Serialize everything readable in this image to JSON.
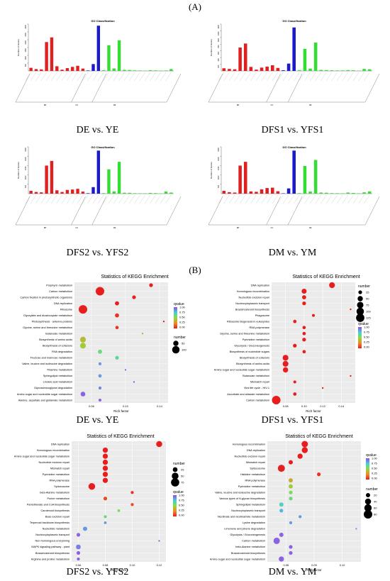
{
  "section_a_label": "(A)",
  "section_b_label": "(B)",
  "go_panels": [
    {
      "id": "go1",
      "title": "GO Classification",
      "caption": "DE vs. YE",
      "ylabel": "Number of Genes",
      "groups": [
        "BP",
        "CC",
        "MF"
      ],
      "yticks": [
        "500",
        "1000",
        "1500",
        "2000",
        "2500",
        "3000"
      ],
      "chart_data": {
        "type": "bar",
        "bp_values": [
          200,
          120,
          100,
          1850,
          2150,
          300,
          80,
          180,
          260,
          330,
          150
        ],
        "cc_values": [
          30,
          440,
          2900,
          45,
          1650,
          160,
          1960,
          70,
          60,
          35,
          30,
          25,
          50,
          35,
          25,
          30,
          120
        ],
        "ymax": 3000
      }
    },
    {
      "id": "go2",
      "title": "GO Classification",
      "caption": "DFS1 vs. YFS1",
      "ylabel": "Number of Genes",
      "groups": [
        "BP",
        "CC",
        "MF"
      ],
      "yticks": [
        "200",
        "400",
        "600",
        "800",
        "1000",
        "1200",
        "1400"
      ],
      "chart_data": {
        "type": "bar",
        "bp_values": [
          80,
          60,
          50,
          700,
          820,
          120,
          40,
          100,
          130,
          170,
          90
        ],
        "cc_values": [
          20,
          220,
          1300,
          25,
          660,
          70,
          850,
          30,
          25,
          20,
          15,
          15,
          25,
          20,
          10,
          60,
          50
        ],
        "ymax": 1400
      }
    },
    {
      "id": "go3",
      "title": "GO Classification",
      "caption": "DFS2 vs. YFS2",
      "ylabel": "Number of Genes",
      "groups": [
        "BP",
        "CC",
        "MF"
      ],
      "yticks": [
        "500",
        "1000",
        "1500",
        "2000",
        "2500"
      ],
      "chart_data": {
        "type": "bar",
        "bp_values": [
          150,
          90,
          70,
          1500,
          1750,
          180,
          90,
          200,
          220,
          260,
          110
        ],
        "cc_values": [
          25,
          350,
          2300,
          30,
          1300,
          120,
          1700,
          50,
          45,
          25,
          20,
          20,
          40,
          30,
          15,
          110,
          60
        ],
        "ymax": 2500
      }
    },
    {
      "id": "go4",
      "title": "GO Classification",
      "caption": "DM vs. YM",
      "ylabel": "Number of Genes",
      "groups": [
        "BP",
        "CC",
        "MF"
      ],
      "yticks": [
        "500",
        "1000",
        "1500",
        "2000",
        "2500"
      ],
      "chart_data": {
        "type": "bar",
        "bp_values": [
          150,
          80,
          60,
          1500,
          1700,
          120,
          100,
          230,
          300,
          320,
          130
        ],
        "cc_values": [
          20,
          280,
          2300,
          30,
          1480,
          110,
          1800,
          60,
          50,
          30,
          25,
          20,
          60,
          40,
          20,
          70,
          120
        ],
        "ymax": 2500
      }
    }
  ],
  "kegg_panels": [
    {
      "id": "k1",
      "title": "Statistics of KEGG Enrichment",
      "caption": "DE vs. YE",
      "xlabel": "Rich factor",
      "xticks": [
        0.06,
        0.1,
        0.14
      ],
      "xlim": [
        0.04,
        0.15
      ],
      "legend": {
        "q_title": "qvalue",
        "q_ticks": [
          "1.00",
          "0.75",
          "0.50",
          "0.25",
          "0.00"
        ],
        "n_title": "number",
        "n_ticks": [
          50,
          100
        ],
        "n_max": 130
      },
      "chart_data": {
        "type": "scatter",
        "terms": [
          "Porphyrin metabolism",
          "Carbon metabolism",
          "Carbon fixation in photosynthetic organisms",
          "DNA replication",
          "Ribosome",
          "Glyoxylate and dicarboxylate metabolism",
          "Photosynthesis - antenna proteins",
          "Glycine, serine and threonine metabolism",
          "Butanoate metabolism",
          "Biosynthesis of amino acids",
          "Biosynthesis of cofactors",
          "RNA degradation",
          "Fructose and mannose metabolism",
          "Valine, leucine and isoleucine degradation",
          "Thiamine metabolism",
          "Sphingolipid metabolism",
          "Linoleic acid metabolism",
          "Glycosaminoglycan degradation",
          "Amino sugar and nucleotide sugar metabolism",
          "Alanine, aspartate and glutamate metabolism"
        ],
        "rich": [
          0.13,
          0.07,
          0.11,
          0.09,
          0.05,
          0.09,
          0.145,
          0.09,
          0.12,
          0.05,
          0.05,
          0.07,
          0.09,
          0.07,
          0.1,
          0.07,
          0.11,
          0.07,
          0.05,
          0.07
        ],
        "number": [
          25,
          130,
          25,
          30,
          130,
          30,
          5,
          20,
          5,
          60,
          60,
          30,
          25,
          15,
          5,
          20,
          5,
          15,
          40,
          15
        ],
        "qvalue": [
          0.0,
          0.0,
          0.0,
          0.0,
          0.0,
          0.05,
          0.0,
          0.05,
          0.35,
          0.4,
          0.45,
          0.6,
          0.65,
          0.85,
          0.95,
          0.85,
          0.95,
          0.9,
          0.95,
          0.95
        ]
      }
    },
    {
      "id": "k2",
      "title": "Statistics of KEGG Enrichment",
      "caption": "DFS1 vs. YFS1",
      "xlabel": "Rich factor",
      "xticks": [
        0.08,
        0.1,
        0.12,
        0.14
      ],
      "xlim": [
        0.065,
        0.155
      ],
      "legend": {
        "q_title": "qvalue",
        "q_ticks": [
          "1.00",
          "0.75",
          "0.50",
          "0.25",
          "0.00"
        ],
        "n_title": "number",
        "n_ticks": [
          25,
          50,
          75,
          100,
          125
        ],
        "n_max": 130
      },
      "chart_data": {
        "type": "scatter",
        "terms": [
          "DNA replication",
          "Homologous recombination",
          "Nucleotide excision repair",
          "Nucleocytoplasmic transport",
          "Brassinosteroid biosynthesis",
          "Phagosome",
          "Ribosome biogenesis in eukaryotes",
          "RNA polymerase",
          "Glycine, serine and threonine metabolism",
          "Pyrimidine metabolism",
          "Glycolysis / Gluconeogenesis",
          "Biosynthesis of nucleotide sugars",
          "Biosynthesis of cofactors",
          "Biosynthesis of amino acids",
          "Amino sugar and nucleotide sugar metabolism",
          "Butanoate metabolism",
          "Mismatch repair",
          "Viral life cycle - HIV-1",
          "Ascorbate and aldarate metabolism",
          "Carbon metabolism"
        ],
        "rich": [
          0.13,
          0.1,
          0.1,
          0.1,
          0.15,
          0.11,
          0.09,
          0.1,
          0.1,
          0.1,
          0.09,
          0.1,
          0.08,
          0.08,
          0.08,
          0.15,
          0.09,
          0.12,
          0.09,
          0.07
        ],
        "number": [
          60,
          45,
          30,
          25,
          5,
          15,
          20,
          20,
          20,
          25,
          25,
          20,
          60,
          60,
          50,
          5,
          15,
          5,
          20,
          130
        ],
        "qvalue": [
          0.0,
          0.0,
          0.0,
          0.0,
          0.0,
          0.0,
          0.0,
          0.0,
          0.0,
          0.0,
          0.0,
          0.0,
          0.0,
          0.0,
          0.0,
          0.0,
          0.0,
          0.0,
          0.0,
          0.0
        ]
      }
    },
    {
      "id": "k3",
      "title": "Statistics of KEGG Enrichment",
      "caption": "DFS2 vs. YFS2",
      "xlabel": "Rich factor",
      "xticks": [
        0.06,
        0.08,
        0.1,
        0.12
      ],
      "xlim": [
        0.055,
        0.125
      ],
      "legend": {
        "q_title": "qvalue",
        "q_ticks": [
          "1.00",
          "0.75",
          "0.50",
          "0.25",
          "0.00"
        ],
        "n_title": "number",
        "n_ticks": [
          25,
          50,
          75
        ],
        "n_max": 80
      },
      "chart_data": {
        "type": "scatter",
        "terms": [
          "DNA replication",
          "Homologous recombination",
          "Amino sugar and nucleotide sugar metabolism",
          "Nucleotide excision repair",
          "Mismatch repair",
          "Pyrimidine metabolism",
          "RNA polymerase",
          "Spliceosome",
          "beta-Alanine metabolism",
          "Purine metabolism",
          "Pantothenate and CoA biosynthesis",
          "Carotenoid biosynthesis",
          "Base excision repair",
          "Terpenoid backbone biosynthesis",
          "Nucleotide metabolism",
          "Nucleocytoplasmic transport",
          "Non-homologous end-joining",
          "MAPK signaling pathway - plant",
          "Brassinosteroid biosynthesis",
          "Arginine and proline metabolism"
        ],
        "rich": [
          0.12,
          0.08,
          0.08,
          0.08,
          0.08,
          0.08,
          0.08,
          0.07,
          0.1,
          0.08,
          0.1,
          0.09,
          0.08,
          0.08,
          0.065,
          0.06,
          0.12,
          0.06,
          0.06,
          0.06
        ],
        "number": [
          40,
          30,
          30,
          30,
          30,
          30,
          30,
          50,
          10,
          15,
          10,
          8,
          10,
          8,
          20,
          15,
          3,
          25,
          15,
          10
        ],
        "qvalue": [
          0.0,
          0.0,
          0.0,
          0.0,
          0.0,
          0.0,
          0.0,
          0.0,
          0.05,
          0.1,
          0.1,
          0.55,
          0.6,
          0.85,
          0.85,
          0.95,
          0.95,
          0.9,
          0.95,
          0.95
        ]
      }
    },
    {
      "id": "k4",
      "title": "Statistics of KEGG Enrichment",
      "caption": "DM vs. YM",
      "xlabel": "Rich factor",
      "xticks": [
        0.06,
        0.09,
        0.12
      ],
      "xlim": [
        0.04,
        0.14
      ],
      "legend": {
        "q_title": "qvalue",
        "q_ticks": [
          "1.00",
          "0.75",
          "0.50",
          "0.25",
          "0.00"
        ],
        "n_title": "number",
        "n_ticks": [
          20,
          40,
          60,
          80
        ],
        "n_max": 80
      },
      "chart_data": {
        "type": "scatter",
        "terms": [
          "Homologous recombination",
          "DNA replication",
          "Nucleotide excision repair",
          "Mismatch repair",
          "Spliceosome",
          "Histidine metabolism",
          "RNA polymerase",
          "Pyrimidine metabolism",
          "Valine, leucine and isoleucine degradation",
          "Various types of N-glycan biosynthesis",
          "Sphingolipid metabolism",
          "Nucleocytoplasmic transport",
          "Nicotinate and nicotinamide metabolism",
          "Lysine degradation",
          "Limonene and pinene degradation",
          "Glycolysis / Gluconeogenesis",
          "Carbon metabolism",
          "beta-Alanine metabolism",
          "Brassinosteroid biosynthesis",
          "Amino sugar and nucleotide sugar metabolism"
        ],
        "rich": [
          0.08,
          0.08,
          0.075,
          0.065,
          0.055,
          0.095,
          0.065,
          0.065,
          0.065,
          0.065,
          0.055,
          0.055,
          0.075,
          0.065,
          0.135,
          0.055,
          0.05,
          0.065,
          0.065,
          0.055
        ],
        "number": [
          45,
          40,
          30,
          20,
          55,
          15,
          20,
          20,
          15,
          15,
          20,
          15,
          10,
          10,
          3,
          20,
          45,
          15,
          15,
          30
        ],
        "qvalue": [
          0.0,
          0.0,
          0.0,
          0.0,
          0.0,
          0.05,
          0.35,
          0.45,
          0.55,
          0.6,
          0.7,
          0.8,
          0.85,
          0.85,
          0.85,
          0.95,
          0.95,
          0.95,
          0.95,
          0.95
        ]
      }
    }
  ]
}
